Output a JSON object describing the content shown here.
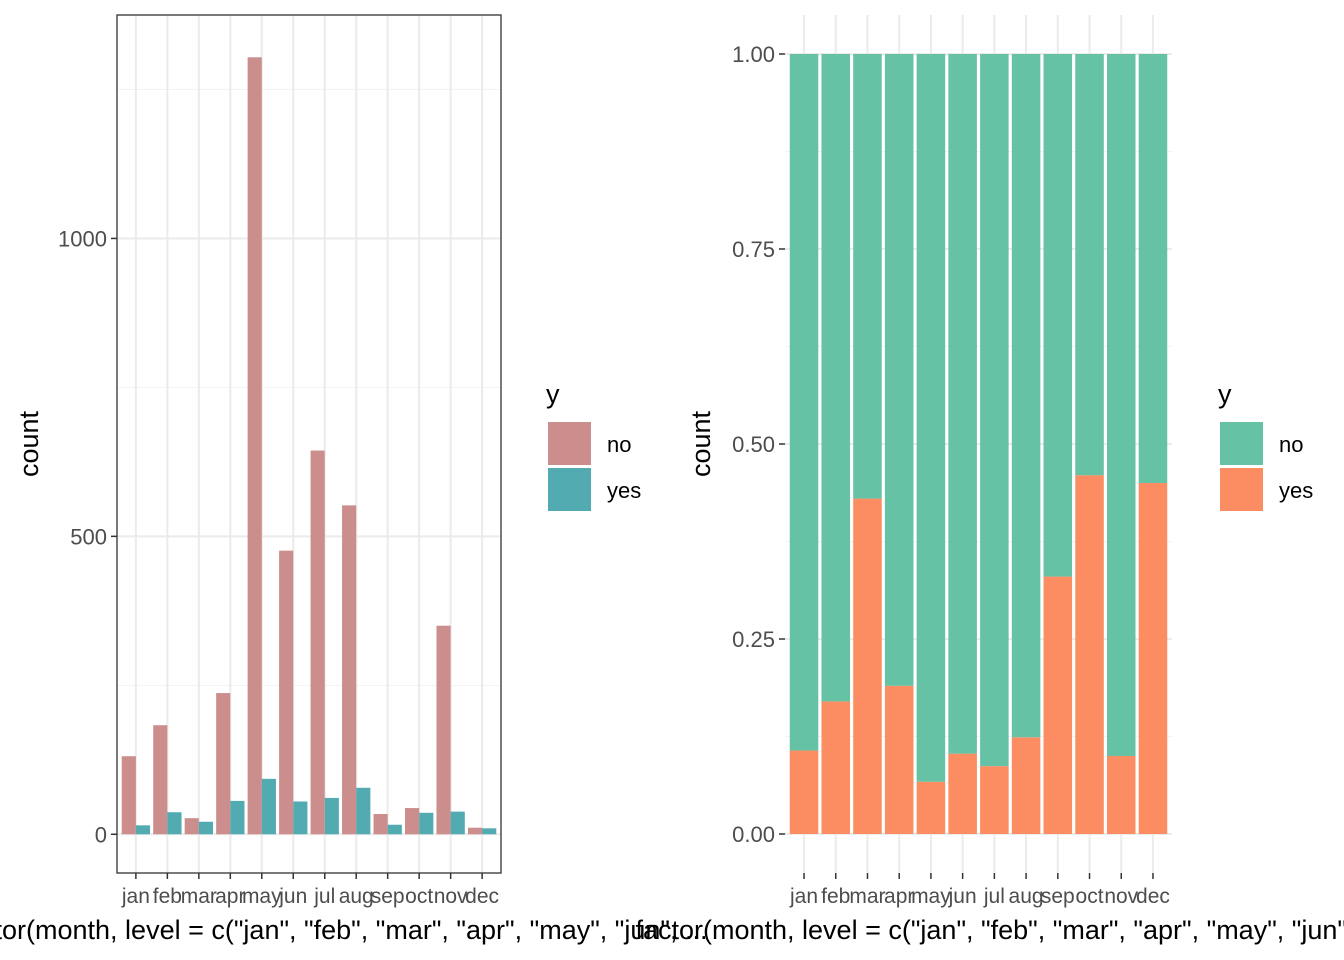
{
  "chart_data": [
    {
      "type": "bar",
      "position": "dodge",
      "title": "",
      "xlabel": "factor(month, level = c(\"jan\", \"feb\", \"mar\", \"apr\", \"may\", \"jun\", ...",
      "ylabel": "count",
      "ylim": [
        -65,
        1375
      ],
      "yticks": [
        0,
        500,
        1000
      ],
      "categories": [
        "jan",
        "feb",
        "mar",
        "apr",
        "may",
        "jun",
        "jul",
        "aug",
        "sep",
        "oct",
        "nov",
        "dec"
      ],
      "legend": {
        "title": "y",
        "placement": "right"
      },
      "grid": true,
      "series": [
        {
          "name": "no",
          "color": "#CC8E8C",
          "values": [
            131,
            183,
            27,
            237,
            1304,
            476,
            644,
            552,
            34,
            44,
            350,
            11
          ]
        },
        {
          "name": "yes",
          "color": "#52ABB0",
          "values": [
            15,
            37,
            21,
            56,
            93,
            55,
            61,
            78,
            16,
            36,
            38,
            10
          ]
        }
      ]
    },
    {
      "type": "bar",
      "position": "fill",
      "title": "",
      "xlabel": "factor(month, level = c(\"jan\", \"feb\", \"mar\", \"apr\", \"may\", \"jun\", ...",
      "ylabel": "count",
      "ylim": [
        -0.05,
        1.05
      ],
      "yticks": [
        "0.00",
        "0.25",
        "0.50",
        "0.75",
        "1.00"
      ],
      "categories": [
        "jan",
        "feb",
        "mar",
        "apr",
        "may",
        "jun",
        "jul",
        "aug",
        "sep",
        "oct",
        "nov",
        "dec"
      ],
      "legend": {
        "title": "y",
        "placement": "right"
      },
      "grid": true,
      "series": [
        {
          "name": "no",
          "color": "#66C2A5",
          "values": [
            0.893,
            0.83,
            0.57,
            0.81,
            0.933,
            0.897,
            0.913,
            0.876,
            0.67,
            0.54,
            0.9,
            0.55
          ]
        },
        {
          "name": "yes",
          "color": "#FC8D62",
          "values": [
            0.107,
            0.17,
            0.43,
            0.19,
            0.067,
            0.103,
            0.087,
            0.124,
            0.33,
            0.46,
            0.1,
            0.45
          ]
        }
      ]
    }
  ]
}
